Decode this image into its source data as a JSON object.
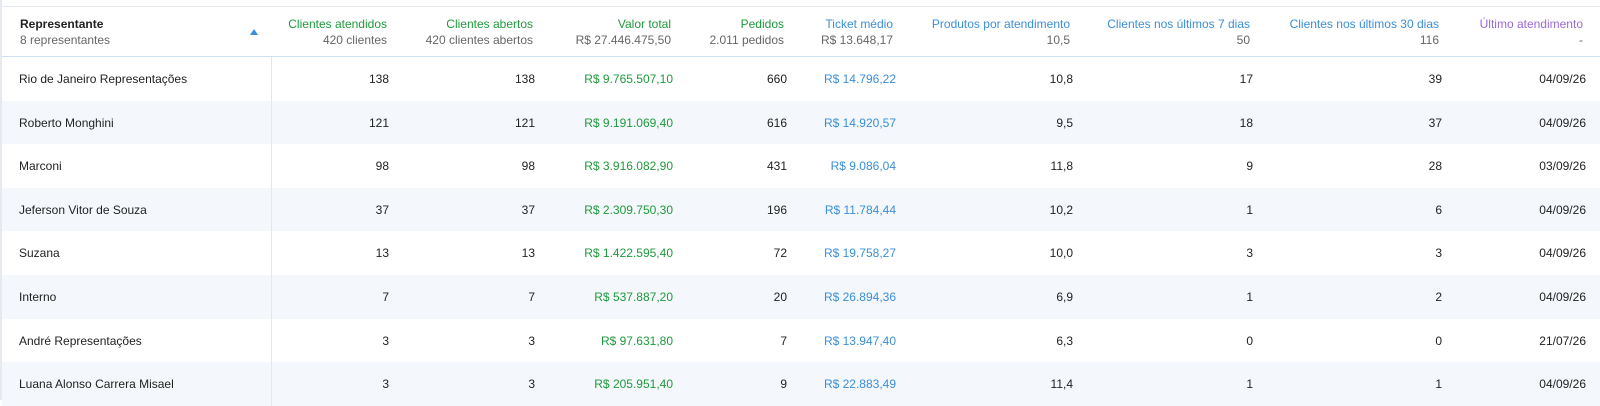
{
  "header": {
    "representante": {
      "title": "Representante",
      "sub": "8 representantes"
    },
    "columns": [
      {
        "title": "Clientes atendidos",
        "sub": "420 clientes"
      },
      {
        "title": "Clientes abertos",
        "sub": "420 clientes abertos"
      },
      {
        "title": "Valor total",
        "sub": "R$ 27.446.475,50"
      },
      {
        "title": "Pedidos",
        "sub": "2.011 pedidos"
      },
      {
        "title": "Ticket médio",
        "sub": "R$ 13.648,17"
      },
      {
        "title": "Produtos por atendimento",
        "sub": "10,5"
      },
      {
        "title": "Clientes nos últimos 7 dias",
        "sub": "50"
      },
      {
        "title": "Clientes nos últimos 30 dias",
        "sub": "116"
      },
      {
        "title": "Último atendimento",
        "sub": "-"
      }
    ]
  },
  "rows": [
    {
      "name": "Rio de Janeiro Representações",
      "c0": "138",
      "c1": "138",
      "c2": "R$ 9.765.507,10",
      "c3": "660",
      "c4": "R$ 14.796,22",
      "c5": "10,8",
      "c6": "17",
      "c7": "39",
      "c8": "04/09/26"
    },
    {
      "name": "Roberto Monghini",
      "c0": "121",
      "c1": "121",
      "c2": "R$ 9.191.069,40",
      "c3": "616",
      "c4": "R$ 14.920,57",
      "c5": "9,5",
      "c6": "18",
      "c7": "37",
      "c8": "04/09/26"
    },
    {
      "name": "Marconi",
      "c0": "98",
      "c1": "98",
      "c2": "R$ 3.916.082,90",
      "c3": "431",
      "c4": "R$ 9.086,04",
      "c5": "11,8",
      "c6": "9",
      "c7": "28",
      "c8": "03/09/26"
    },
    {
      "name": "Jeferson Vitor de Souza",
      "c0": "37",
      "c1": "37",
      "c2": "R$ 2.309.750,30",
      "c3": "196",
      "c4": "R$ 11.784,44",
      "c5": "10,2",
      "c6": "1",
      "c7": "6",
      "c8": "04/09/26"
    },
    {
      "name": "Suzana",
      "c0": "13",
      "c1": "13",
      "c2": "R$ 1.422.595,40",
      "c3": "72",
      "c4": "R$ 19.758,27",
      "c5": "10,0",
      "c6": "3",
      "c7": "3",
      "c8": "04/09/26"
    },
    {
      "name": "Interno",
      "c0": "7",
      "c1": "7",
      "c2": "R$ 537.887,20",
      "c3": "20",
      "c4": "R$ 26.894,36",
      "c5": "6,9",
      "c6": "1",
      "c7": "2",
      "c8": "04/09/26"
    },
    {
      "name": "André Representações",
      "c0": "3",
      "c1": "3",
      "c2": "R$ 97.631,80",
      "c3": "7",
      "c4": "R$ 13.947,40",
      "c5": "6,3",
      "c6": "0",
      "c7": "0",
      "c8": "21/07/26"
    },
    {
      "name": "Luana Alonso Carrera Misael",
      "c0": "3",
      "c1": "3",
      "c2": "R$ 205.951,40",
      "c3": "9",
      "c4": "R$ 22.883,49",
      "c5": "11,4",
      "c6": "1",
      "c7": "1",
      "c8": "04/09/26"
    }
  ],
  "icons": {
    "sort": "sort-ascending-icon"
  },
  "colors": {
    "green": "#1f9a3c",
    "blue": "#3a8fd9",
    "purple": "#9b6ad8"
  }
}
